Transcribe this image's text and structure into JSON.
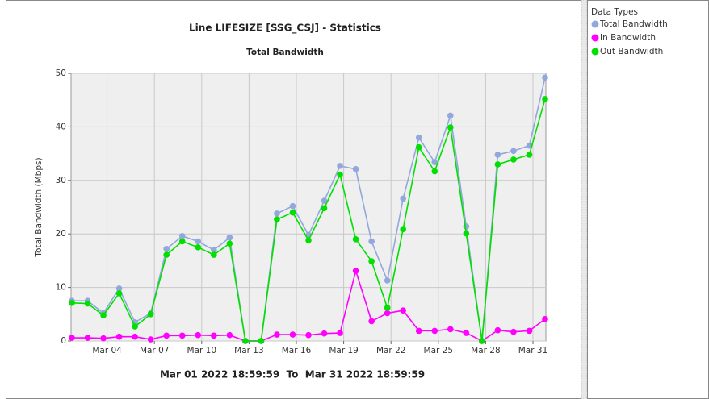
{
  "chart_data": {
    "type": "line",
    "title": "Line LIFESIZE [SSG_CSJ] - Statistics",
    "subtitle": "Total Bandwidth",
    "y_label": "Total Bandwidth (Mbps)",
    "footer": "Mar 01 2022 18:59:59  To  Mar 31 2022 18:59:59",
    "legend_title": "Data Types",
    "legend": "right",
    "grid": true,
    "categories": [
      null,
      null,
      null,
      "Mar 04",
      null,
      null,
      "Mar 07",
      null,
      null,
      "Mar 10",
      null,
      null,
      "Mar 13",
      null,
      null,
      "Mar 16",
      null,
      null,
      "Mar 19",
      null,
      null,
      "Mar 22",
      null,
      null,
      "Mar 25",
      null,
      null,
      "Mar 28",
      null,
      null,
      "Mar 31"
    ],
    "ylim": [
      0,
      50
    ],
    "yticks": [
      0,
      10,
      20,
      30,
      40,
      50
    ],
    "series": [
      {
        "name": "Total Bandwidth",
        "color": "#92a8dc",
        "values": [
          7.5,
          7.5,
          5.2,
          9.8,
          3.5,
          5.2,
          17.2,
          19.6,
          18.6,
          17.0,
          19.3,
          0,
          0,
          23.8,
          25.2,
          19.8,
          26.2,
          32.7,
          32.1,
          18.6,
          11.3,
          26.6,
          38.0,
          33.4,
          42.1,
          21.4,
          0,
          34.8,
          35.5,
          36.5,
          49.2
        ]
      },
      {
        "name": "In Bandwidth",
        "color": "#ff00ff",
        "values": [
          0.6,
          0.6,
          0.5,
          0.8,
          0.8,
          0.3,
          1.0,
          1.0,
          1.1,
          1.0,
          1.1,
          0,
          0,
          1.2,
          1.2,
          1.1,
          1.4,
          1.5,
          13.1,
          3.7,
          5.2,
          5.7,
          1.9,
          1.9,
          2.2,
          1.5,
          0,
          2.0,
          1.7,
          1.9,
          4.1
        ]
      },
      {
        "name": "Out Bandwidth",
        "color": "#00e000",
        "values": [
          7.1,
          7.0,
          4.8,
          8.9,
          2.7,
          5.0,
          16.1,
          18.6,
          17.5,
          16.1,
          18.2,
          0,
          0,
          22.7,
          24.0,
          18.8,
          24.8,
          31.1,
          19.0,
          14.9,
          6.2,
          20.9,
          36.2,
          31.7,
          39.9,
          20.1,
          0,
          33.0,
          33.9,
          34.8,
          45.2
        ]
      }
    ]
  }
}
